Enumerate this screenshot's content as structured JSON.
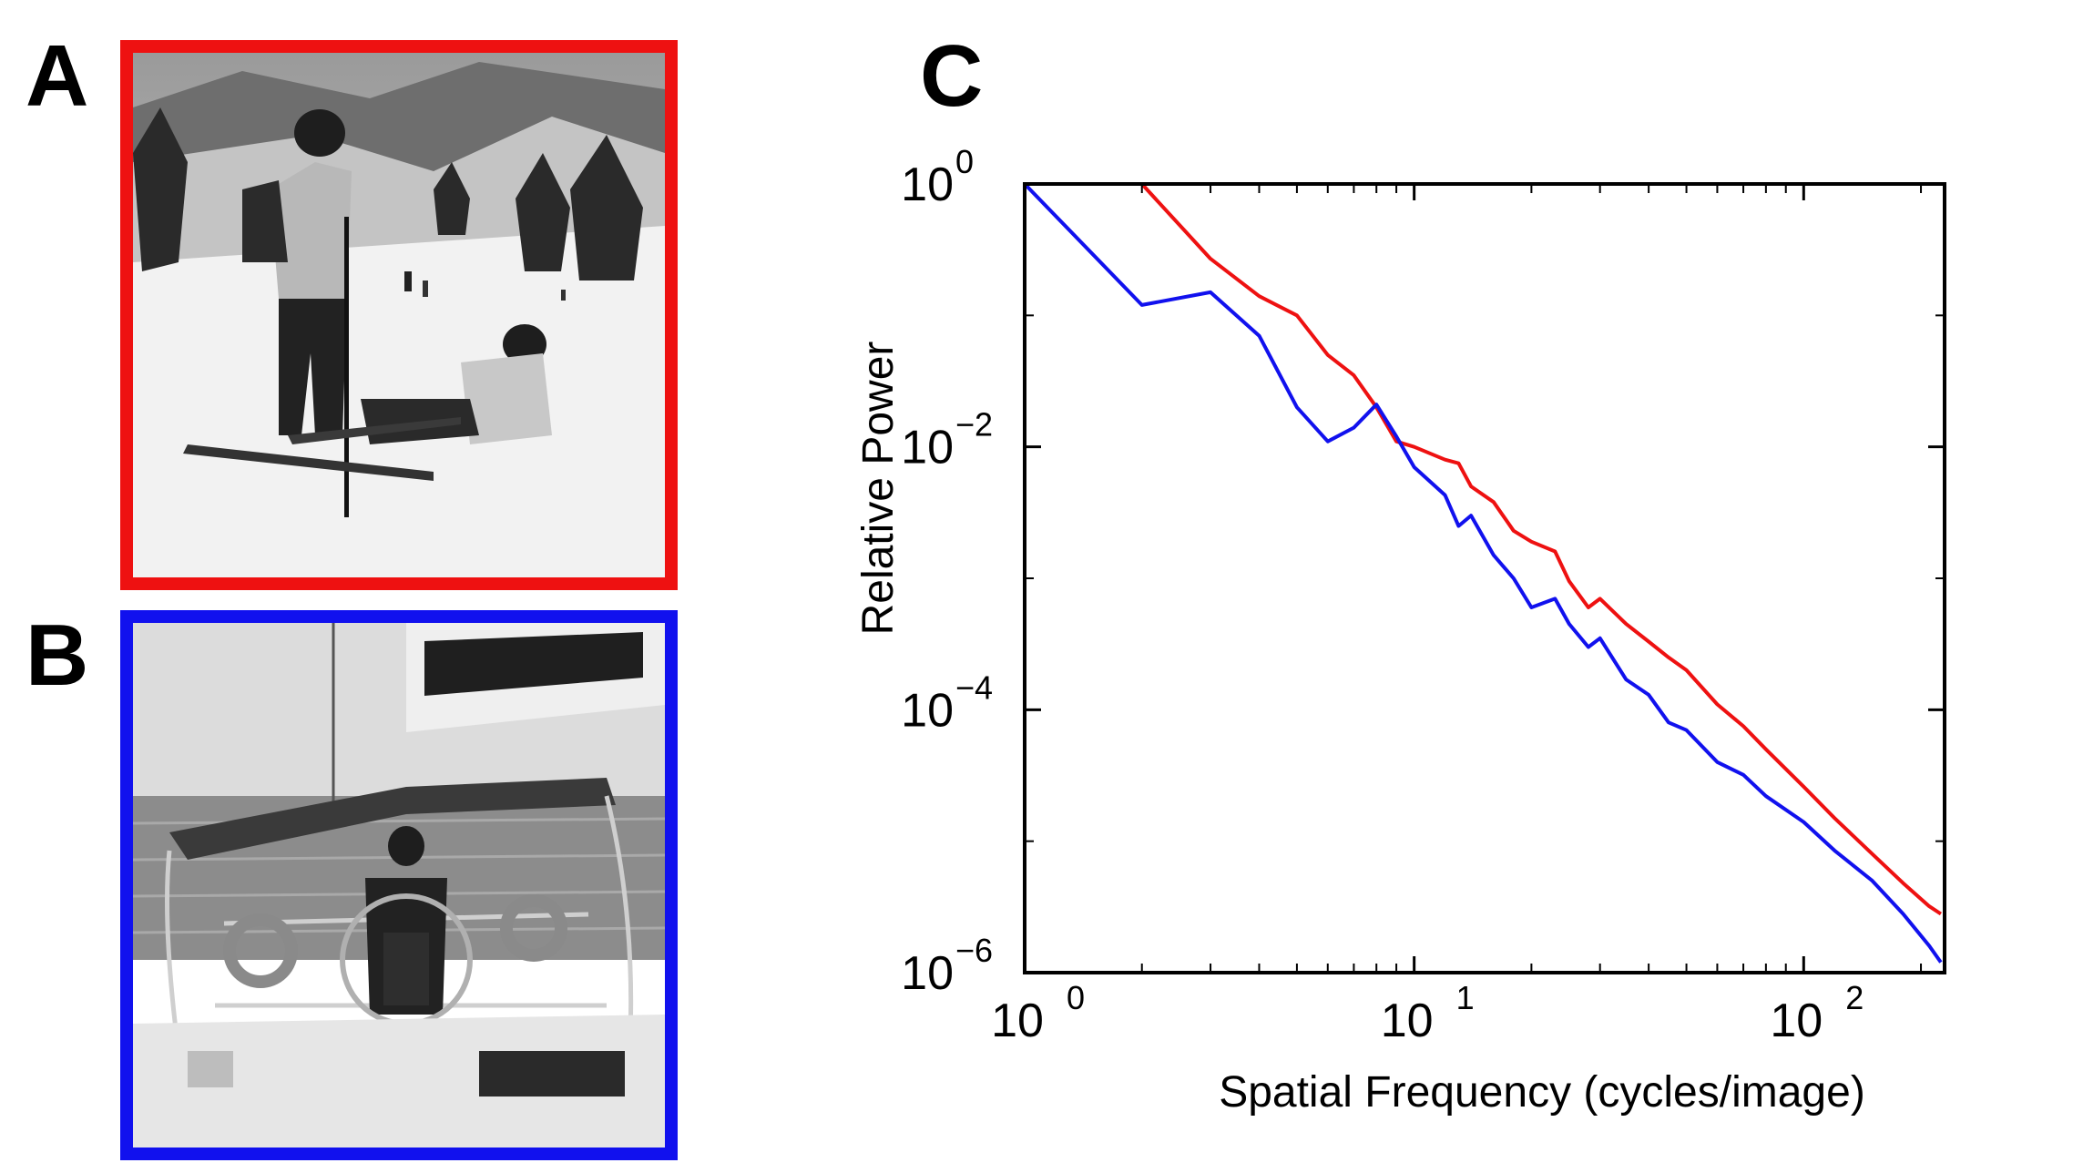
{
  "panels": {
    "a": {
      "label": "A",
      "frame_color": "#ee1111",
      "content": "grayscale photo: two skiers on a snowy slope"
    },
    "b": {
      "label": "B",
      "frame_color": "#1111ee",
      "content": "grayscale photo: man at helm of a sailboat"
    },
    "c": {
      "label": "C"
    }
  },
  "chart_data": {
    "type": "line",
    "scale": "log-log",
    "xlabel": "Spatial Frequency (cycles/image)",
    "ylabel": "Relative Power",
    "xlim": [
      1,
      230
    ],
    "ylim": [
      1e-06,
      1
    ],
    "grid": false,
    "x_ticks": [
      {
        "base": "10",
        "exp": "0",
        "value": 1
      },
      {
        "base": "10",
        "exp": "1",
        "value": 10
      },
      {
        "base": "10",
        "exp": "2",
        "value": 100
      }
    ],
    "y_ticks": [
      {
        "base": "10",
        "exp": "0",
        "value": 1
      },
      {
        "base": "10",
        "exp": "−2",
        "value": 0.01
      },
      {
        "base": "10",
        "exp": "−4",
        "value": 0.0001
      },
      {
        "base": "10",
        "exp": "−6",
        "value": 1e-06
      }
    ],
    "series": [
      {
        "name": "A",
        "color": "#ee1111",
        "x": [
          1,
          2,
          3,
          4,
          5,
          6,
          7,
          8,
          9,
          10,
          12,
          13,
          14,
          16,
          18,
          20,
          23,
          25,
          28,
          30,
          35,
          40,
          45,
          50,
          60,
          70,
          80,
          100,
          120,
          150,
          180,
          210,
          225
        ],
        "y": [
          1,
          1,
          0.27,
          0.14,
          0.1,
          0.05,
          0.035,
          0.02,
          0.011,
          0.01,
          0.008,
          0.0075,
          0.005,
          0.0038,
          0.0023,
          0.0019,
          0.0016,
          0.00095,
          0.0006,
          0.0007,
          0.00045,
          0.00033,
          0.00025,
          0.0002,
          0.00011,
          7.5e-05,
          5e-05,
          2.6e-05,
          1.5e-05,
          8e-06,
          4.8e-06,
          3.2e-06,
          2.8e-06
        ]
      },
      {
        "name": "B",
        "color": "#1111ee",
        "x": [
          1,
          2,
          3,
          4,
          5,
          6,
          7,
          8,
          9,
          10,
          12,
          13,
          14,
          16,
          18,
          20,
          23,
          25,
          28,
          30,
          35,
          40,
          45,
          50,
          60,
          70,
          80,
          100,
          120,
          150,
          180,
          210,
          225
        ],
        "y": [
          1,
          0.12,
          0.15,
          0.07,
          0.02,
          0.011,
          0.014,
          0.021,
          0.012,
          0.007,
          0.0043,
          0.0025,
          0.003,
          0.0015,
          0.001,
          0.0006,
          0.0007,
          0.00045,
          0.0003,
          0.00035,
          0.00017,
          0.00013,
          8e-05,
          7e-05,
          4e-05,
          3.2e-05,
          2.2e-05,
          1.4e-05,
          8.5e-06,
          5e-06,
          2.8e-06,
          1.6e-06,
          1.2e-06
        ]
      }
    ]
  }
}
